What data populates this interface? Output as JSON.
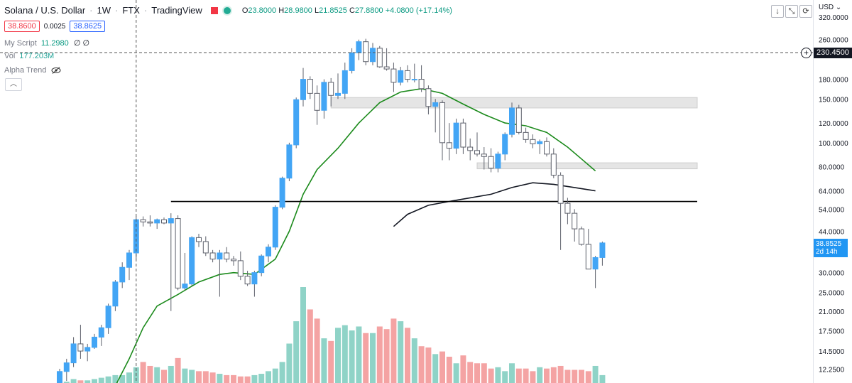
{
  "header": {
    "symbol": "Solana / U.S. Dollar",
    "interval": "1W",
    "exchange": "FTX",
    "provider": "TradingView",
    "ohlc": {
      "o_label": "O",
      "o": "23.8000",
      "h_label": "H",
      "h": "28.9800",
      "l_label": "L",
      "l": "21.8525",
      "c_label": "C",
      "c": "27.8800",
      "change": "+4.0800 (+17.14%)"
    }
  },
  "trade": {
    "sell": "38.8600",
    "spread": "0.0025",
    "buy": "38.8625"
  },
  "indicators": {
    "my_script": {
      "name": "My Script",
      "value": "11.2980",
      "extra": "∅ ∅"
    },
    "volume": {
      "name": "Vol",
      "value": "177.203M"
    },
    "alpha_trend": {
      "name": "Alpha Trend",
      "icon": "eye-off-icon"
    }
  },
  "toolbar": {
    "down_icon": "↓",
    "expand_icon": "⤡",
    "refresh_icon": "⟳",
    "collapse_icon": "︿"
  },
  "axis": {
    "currency": "USD",
    "crosshair_price": "230.4500"
  },
  "last_price": {
    "value": "38.8525",
    "countdown": "2d 14h"
  },
  "colors": {
    "up": "#42a5f5",
    "down": "#ffffff",
    "ma_green": "#1b8a1b",
    "ma_black": "#131722",
    "vol_up": "#8fd3c7",
    "vol_down": "#f4a3a3",
    "zone": "#e3e3e3"
  },
  "chart_data": {
    "type": "candlestick",
    "y_scale": "log",
    "ylim": [
      11,
      340
    ],
    "y_ticks": [
      "320.0000",
      "260.0000",
      "180.0000",
      "150.0000",
      "120.0000",
      "100.0000",
      "80.0000",
      "64.0000",
      "54.0000",
      "44.0000",
      "30.0000",
      "25.0000",
      "21.0000",
      "17.5000",
      "14.5000",
      "12.2500"
    ],
    "candles": [
      {
        "o": 10.5,
        "h": 12.3,
        "l": 10.0,
        "c": 12.0
      },
      {
        "o": 12.0,
        "h": 13.5,
        "l": 11.0,
        "c": 13.0
      },
      {
        "o": 13.0,
        "h": 16.5,
        "l": 12.5,
        "c": 15.5
      },
      {
        "o": 15.5,
        "h": 18.5,
        "l": 13.5,
        "c": 14.5
      },
      {
        "o": 14.5,
        "h": 15.5,
        "l": 13.2,
        "c": 15.0
      },
      {
        "o": 15.0,
        "h": 17.0,
        "l": 14.8,
        "c": 16.5
      },
      {
        "o": 16.5,
        "h": 18.5,
        "l": 15.2,
        "c": 18.0
      },
      {
        "o": 18.0,
        "h": 22.5,
        "l": 17.0,
        "c": 22.0
      },
      {
        "o": 22.0,
        "h": 28.0,
        "l": 21.0,
        "c": 27.5
      },
      {
        "o": 27.5,
        "h": 33.0,
        "l": 26.0,
        "c": 31.5
      },
      {
        "o": 31.5,
        "h": 37.0,
        "l": 28.0,
        "c": 36.0
      },
      {
        "o": 36.0,
        "h": 50.5,
        "l": 34.0,
        "c": 49.0
      },
      {
        "o": 49.0,
        "h": 50.5,
        "l": 46.0,
        "c": 48.0
      },
      {
        "o": 48.0,
        "h": 51.0,
        "l": 46.0,
        "c": 47.5
      },
      {
        "o": 47.5,
        "h": 49.5,
        "l": 45.0,
        "c": 49.0
      },
      {
        "o": 49.0,
        "h": 50.0,
        "l": 47.0,
        "c": 47.5
      },
      {
        "o": 47.5,
        "h": 52.0,
        "l": 21.0,
        "c": 49.5
      },
      {
        "o": 49.5,
        "h": 51.0,
        "l": 25.5,
        "c": 26.0
      },
      {
        "o": 26.0,
        "h": 36.0,
        "l": 25.5,
        "c": 27.0
      },
      {
        "o": 27.0,
        "h": 42.0,
        "l": 26.5,
        "c": 41.5
      },
      {
        "o": 41.5,
        "h": 43.0,
        "l": 38.0,
        "c": 40.0
      },
      {
        "o": 40.0,
        "h": 42.0,
        "l": 35.0,
        "c": 36.0
      },
      {
        "o": 36.0,
        "h": 37.0,
        "l": 33.0,
        "c": 34.0
      },
      {
        "o": 34.0,
        "h": 37.0,
        "l": 24.0,
        "c": 36.0
      },
      {
        "o": 36.0,
        "h": 38.0,
        "l": 33.0,
        "c": 34.0
      },
      {
        "o": 34.0,
        "h": 35.0,
        "l": 32.0,
        "c": 33.5
      },
      {
        "o": 33.5,
        "h": 36.5,
        "l": 28.0,
        "c": 29.0
      },
      {
        "o": 29.0,
        "h": 30.5,
        "l": 26.5,
        "c": 27.0
      },
      {
        "o": 27.0,
        "h": 30.5,
        "l": 24.0,
        "c": 30.0
      },
      {
        "o": 30.0,
        "h": 35.5,
        "l": 29.0,
        "c": 35.0
      },
      {
        "o": 35.0,
        "h": 39.0,
        "l": 33.0,
        "c": 38.0
      },
      {
        "o": 38.0,
        "h": 56.0,
        "l": 37.0,
        "c": 55.0
      },
      {
        "o": 55.0,
        "h": 73.0,
        "l": 54.0,
        "c": 72.0
      },
      {
        "o": 72.0,
        "h": 100.0,
        "l": 70.0,
        "c": 98.0
      },
      {
        "o": 98.0,
        "h": 152.0,
        "l": 95.0,
        "c": 149.0
      },
      {
        "o": 149.0,
        "h": 200.0,
        "l": 140.0,
        "c": 180.0
      },
      {
        "o": 180.0,
        "h": 185.0,
        "l": 150.0,
        "c": 158.0
      },
      {
        "o": 158.0,
        "h": 170.0,
        "l": 118.0,
        "c": 135.0
      },
      {
        "o": 135.0,
        "h": 180.0,
        "l": 125.0,
        "c": 175.0
      },
      {
        "o": 175.0,
        "h": 182.0,
        "l": 140.0,
        "c": 155.0
      },
      {
        "o": 155.0,
        "h": 190.0,
        "l": 150.0,
        "c": 158.0
      },
      {
        "o": 158.0,
        "h": 210.0,
        "l": 150.0,
        "c": 195.0
      },
      {
        "o": 195.0,
        "h": 240.0,
        "l": 190.0,
        "c": 230.0
      },
      {
        "o": 230.0,
        "h": 260.0,
        "l": 215.0,
        "c": 255.0
      },
      {
        "o": 255.0,
        "h": 262.0,
        "l": 205.0,
        "c": 212.0
      },
      {
        "o": 212.0,
        "h": 252.0,
        "l": 205.0,
        "c": 240.0
      },
      {
        "o": 240.0,
        "h": 245.0,
        "l": 200.0,
        "c": 202.0
      },
      {
        "o": 202.0,
        "h": 240.0,
        "l": 195.0,
        "c": 198.0
      },
      {
        "o": 198.0,
        "h": 210.0,
        "l": 160.0,
        "c": 175.0
      },
      {
        "o": 175.0,
        "h": 202.0,
        "l": 170.0,
        "c": 195.0
      },
      {
        "o": 195.0,
        "h": 205.0,
        "l": 175.0,
        "c": 180.0
      },
      {
        "o": 180.0,
        "h": 208.0,
        "l": 175.0,
        "c": 180.0
      },
      {
        "o": 180.0,
        "h": 205.0,
        "l": 160.0,
        "c": 165.0
      },
      {
        "o": 165.0,
        "h": 170.0,
        "l": 130.0,
        "c": 140.0
      },
      {
        "o": 140.0,
        "h": 150.0,
        "l": 110.0,
        "c": 145.0
      },
      {
        "o": 145.0,
        "h": 148.0,
        "l": 85.0,
        "c": 100.0
      },
      {
        "o": 100.0,
        "h": 120.0,
        "l": 85.0,
        "c": 95.0
      },
      {
        "o": 95.0,
        "h": 125.0,
        "l": 90.0,
        "c": 120.0
      },
      {
        "o": 120.0,
        "h": 125.0,
        "l": 90.0,
        "c": 96.0
      },
      {
        "o": 96.0,
        "h": 104.0,
        "l": 85.0,
        "c": 93.0
      },
      {
        "o": 93.0,
        "h": 110.0,
        "l": 88.0,
        "c": 90.0
      },
      {
        "o": 90.0,
        "h": 96.0,
        "l": 78.0,
        "c": 88.0
      },
      {
        "o": 88.0,
        "h": 95.0,
        "l": 76.0,
        "c": 79.0
      },
      {
        "o": 79.0,
        "h": 92.0,
        "l": 76.0,
        "c": 90.0
      },
      {
        "o": 90.0,
        "h": 110.0,
        "l": 85.0,
        "c": 108.0
      },
      {
        "o": 108.0,
        "h": 145.0,
        "l": 105.0,
        "c": 138.0
      },
      {
        "o": 138.0,
        "h": 142.0,
        "l": 108.0,
        "c": 110.0
      },
      {
        "o": 110.0,
        "h": 115.0,
        "l": 100.0,
        "c": 103.0
      },
      {
        "o": 103.0,
        "h": 108.0,
        "l": 95.0,
        "c": 99.0
      },
      {
        "o": 99.0,
        "h": 103.0,
        "l": 90.0,
        "c": 101.0
      },
      {
        "o": 101.0,
        "h": 105.0,
        "l": 88.0,
        "c": 90.0
      },
      {
        "o": 90.0,
        "h": 95.0,
        "l": 72.0,
        "c": 74.0
      },
      {
        "o": 74.0,
        "h": 76.0,
        "l": 37.0,
        "c": 57.0
      },
      {
        "o": 57.0,
        "h": 60.0,
        "l": 47.0,
        "c": 52.0
      },
      {
        "o": 52.0,
        "h": 54.0,
        "l": 40.0,
        "c": 45.0
      },
      {
        "o": 45.0,
        "h": 46.0,
        "l": 38.5,
        "c": 39.0
      },
      {
        "o": 39.0,
        "h": 45.0,
        "l": 31.0,
        "c": 31.0
      },
      {
        "o": 31.0,
        "h": 35.0,
        "l": 26.0,
        "c": 34.5
      },
      {
        "o": 34.5,
        "h": 40.0,
        "l": 32.0,
        "c": 39.5
      }
    ],
    "volume": [
      1,
      1,
      3,
      2,
      2,
      3,
      4,
      5,
      6,
      6,
      8,
      12,
      16,
      13,
      12,
      10,
      13,
      19,
      11,
      10,
      9,
      9,
      8,
      7,
      6,
      6,
      5,
      5,
      6,
      7,
      9,
      11,
      16,
      30,
      47,
      73,
      56,
      49,
      34,
      32,
      42,
      44,
      40,
      43,
      38,
      38,
      43,
      41,
      49,
      47,
      42,
      34,
      28,
      27,
      22,
      24,
      20,
      15,
      21,
      16,
      15,
      15,
      11,
      12,
      9,
      15,
      11,
      11,
      9,
      12,
      11,
      12,
      13,
      10,
      10,
      10,
      9,
      13,
      6
    ],
    "ma_green": [
      {
        "i": 8,
        "v": 10.5
      },
      {
        "i": 10,
        "v": 13.5
      },
      {
        "i": 12,
        "v": 18.0
      },
      {
        "i": 14,
        "v": 22.0
      },
      {
        "i": 17,
        "v": 24.5
      },
      {
        "i": 20,
        "v": 27.5
      },
      {
        "i": 23,
        "v": 29.5
      },
      {
        "i": 25,
        "v": 30.0
      },
      {
        "i": 28,
        "v": 29.5
      },
      {
        "i": 31,
        "v": 34.0
      },
      {
        "i": 33,
        "v": 44.0
      },
      {
        "i": 35,
        "v": 62.0
      },
      {
        "i": 37,
        "v": 78.0
      },
      {
        "i": 40,
        "v": 95.0
      },
      {
        "i": 43,
        "v": 120.0
      },
      {
        "i": 46,
        "v": 145.0
      },
      {
        "i": 49,
        "v": 160.0
      },
      {
        "i": 52,
        "v": 165.0
      },
      {
        "i": 55,
        "v": 158.0
      },
      {
        "i": 58,
        "v": 143.0
      },
      {
        "i": 61,
        "v": 130.0
      },
      {
        "i": 64,
        "v": 120.0
      },
      {
        "i": 67,
        "v": 117.0
      },
      {
        "i": 70,
        "v": 110.0
      },
      {
        "i": 73,
        "v": 96.0
      },
      {
        "i": 75,
        "v": 86.0
      },
      {
        "i": 77,
        "v": 77.0
      }
    ],
    "ma_black": [
      {
        "i": 48,
        "v": 46.0
      },
      {
        "i": 50,
        "v": 51.5
      },
      {
        "i": 53,
        "v": 56.0
      },
      {
        "i": 56,
        "v": 58.0
      },
      {
        "i": 59,
        "v": 60.0
      },
      {
        "i": 62,
        "v": 62.0
      },
      {
        "i": 65,
        "v": 66.0
      },
      {
        "i": 68,
        "v": 69.0
      },
      {
        "i": 71,
        "v": 68.0
      },
      {
        "i": 74,
        "v": 66.0
      },
      {
        "i": 77,
        "v": 64.0
      }
    ],
    "hline": {
      "value": 58.0,
      "from": 16,
      "to": 92
    },
    "zones": [
      {
        "from": 39,
        "to": 92,
        "low": 138.0,
        "high": 152.0
      },
      {
        "from": 60,
        "to": 92,
        "low": 78.5,
        "high": 83.0
      }
    ],
    "crosshair": {
      "index": 11,
      "price": 230.45
    }
  }
}
